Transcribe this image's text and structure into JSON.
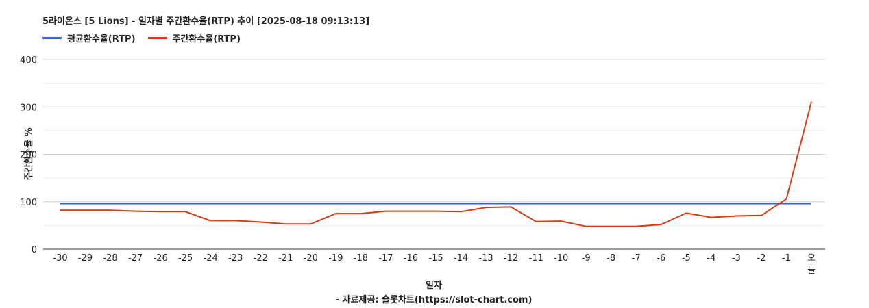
{
  "chart_data": {
    "type": "line",
    "title": "5라이온스 [5 Lions] - 일자별 주간환수율(RTP) 추이 [2025-08-18 09:13:13]",
    "xlabel": "일자",
    "ylabel": "주간환수율 %",
    "source": "- 자료제공: 슬롯차트(https://slot-chart.com)",
    "ylim": [
      0,
      400
    ],
    "yticks": [
      0,
      100,
      200,
      300,
      400
    ],
    "legend_position": "top-left",
    "grid": true,
    "categories": [
      "-30",
      "-29",
      "-28",
      "-27",
      "-26",
      "-25",
      "-24",
      "-23",
      "-22",
      "-21",
      "-20",
      "-19",
      "-18",
      "-17",
      "-16",
      "-15",
      "-14",
      "-13",
      "-12",
      "-11",
      "-10",
      "-9",
      "-8",
      "-7",
      "-6",
      "-5",
      "-4",
      "-3",
      "-2",
      "-1",
      "오늘"
    ],
    "series": [
      {
        "name": "평균환수율(RTP)",
        "color": "#3366cc",
        "values": [
          96,
          96,
          96,
          96,
          96,
          96,
          96,
          96,
          96,
          96,
          96,
          96,
          96,
          96,
          96,
          96,
          96,
          96,
          96,
          96,
          96,
          96,
          96,
          96,
          96,
          96,
          96,
          96,
          96,
          96,
          96
        ]
      },
      {
        "name": "주간환수율(RTP)",
        "color": "#dc3912",
        "values": [
          82,
          82,
          82,
          80,
          79,
          79,
          60,
          60,
          57,
          53,
          53,
          75,
          75,
          80,
          80,
          80,
          79,
          88,
          89,
          58,
          59,
          48,
          48,
          48,
          52,
          76,
          67,
          70,
          71,
          106,
          311
        ]
      }
    ]
  }
}
